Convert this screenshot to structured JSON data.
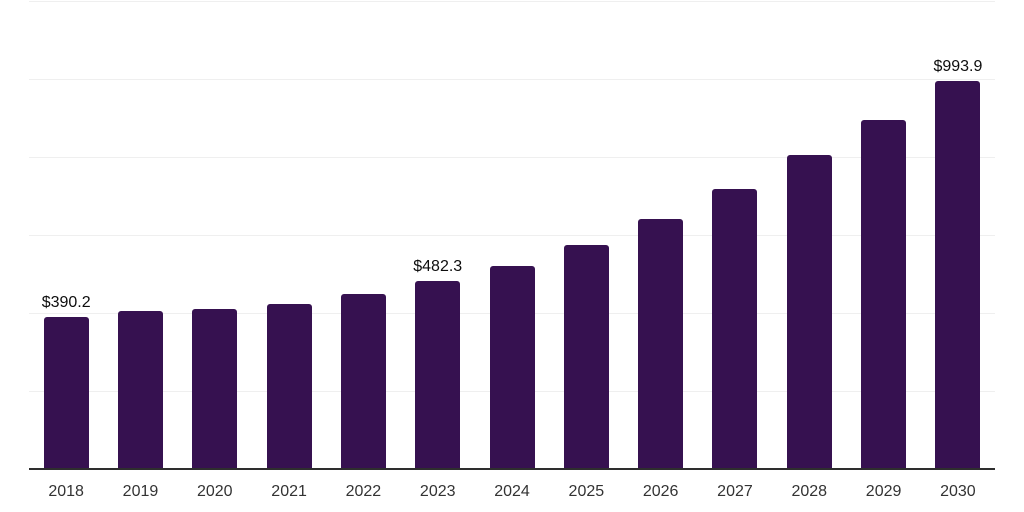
{
  "chart_data": {
    "type": "bar",
    "title": "",
    "xlabel": "",
    "ylabel": "",
    "categories": [
      "2018",
      "2019",
      "2020",
      "2021",
      "2022",
      "2023",
      "2024",
      "2025",
      "2026",
      "2027",
      "2028",
      "2029",
      "2030"
    ],
    "values": [
      390.2,
      405,
      411,
      424,
      448,
      482.3,
      521,
      575,
      642,
      719,
      805,
      894,
      993.9
    ],
    "data_labels": {
      "2018": "$390.2",
      "2023": "$482.3",
      "2030": "$993.9"
    },
    "ylim": [
      0,
      1200
    ],
    "gridline_interval": 200,
    "grid": "horizontal-only",
    "legend": "none",
    "y_tick_labels_shown": false
  },
  "colors": {
    "bar": "#361150",
    "axis": "#2e2e2e",
    "gridline": "#efefef",
    "value_label_text": "#0d0d0d",
    "tick_text": "#333333",
    "background": "#ffffff"
  }
}
